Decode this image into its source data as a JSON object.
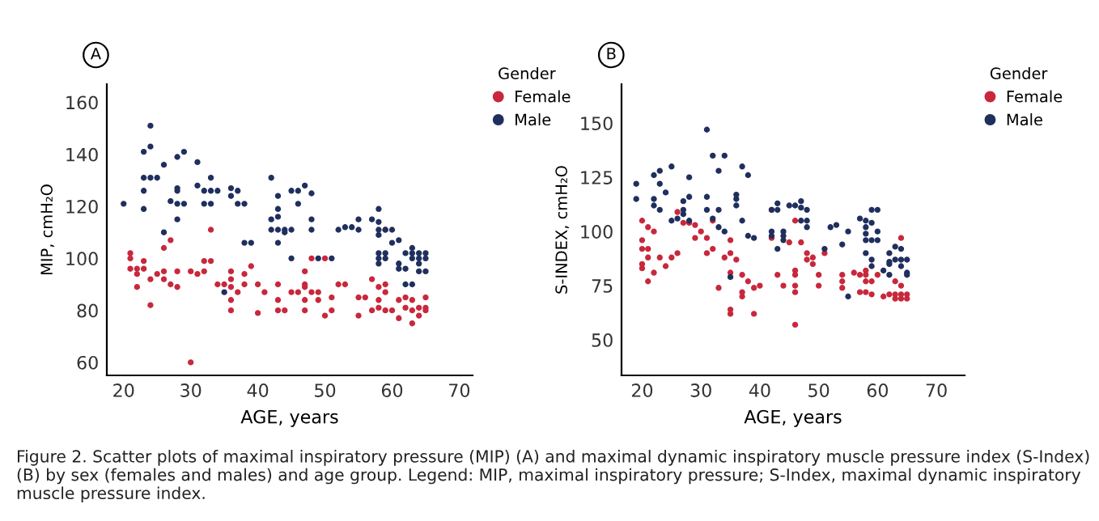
{
  "chart_data": [
    {
      "type": "scatter",
      "xlabel": "AGE, years",
      "ylabel": "MIP, cmH₂O",
      "xlim": [
        17.5,
        72
      ],
      "ylim": [
        55,
        167
      ],
      "xticks": [
        20,
        30,
        40,
        50,
        60,
        70
      ],
      "yticks": [
        60,
        80,
        100,
        120,
        140,
        160
      ],
      "grid": false,
      "legend": "top right",
      "legend_title": "Gender",
      "marker": "circle",
      "annotations": [
        "A",
        "Figure 2. Scatter plots of maximal inspiratory pressure (MIP) (A) and maximal dynamic inspiratory muscle pressure index (S-Index) (B) by sex (females and males) and age group. Legend: MIP, maximal inspiratory pressure; S-Index, maximal dynamic inspiratory muscle pressure index."
      ],
      "series": [
        {
          "name": "Female",
          "color": "#c8283c",
          "x": [
            21,
            21,
            21,
            22,
            22,
            22,
            23,
            23,
            24,
            24,
            25,
            26,
            26,
            26,
            27,
            27,
            28,
            28,
            30,
            30,
            31,
            32,
            32,
            33,
            33,
            34,
            35,
            36,
            36,
            36,
            36,
            36,
            37,
            38,
            38,
            39,
            40,
            40,
            41,
            43,
            43,
            43,
            44,
            45,
            46,
            47,
            47,
            47,
            47,
            47,
            48,
            48,
            49,
            49,
            50,
            50,
            51,
            51,
            52,
            53,
            55,
            55,
            56,
            57,
            57,
            58,
            58,
            58,
            59,
            59,
            59,
            59,
            60,
            61,
            61,
            62,
            62,
            63,
            63,
            63,
            64,
            64,
            65,
            65,
            65
          ],
          "values": [
            102,
            100,
            96,
            96,
            94,
            89,
            99,
            96,
            92,
            82,
            94,
            104,
            95,
            92,
            107,
            90,
            95,
            89,
            60,
            95,
            94,
            99,
            95,
            111,
            99,
            90,
            90,
            95,
            92,
            89,
            84,
            80,
            87,
            94,
            90,
            97,
            90,
            79,
            87,
            90,
            84,
            80,
            80,
            87,
            87,
            95,
            90,
            89,
            84,
            80,
            100,
            87,
            87,
            84,
            100,
            78,
            85,
            80,
            90,
            90,
            85,
            78,
            85,
            92,
            80,
            89,
            84,
            81,
            111,
            90,
            87,
            80,
            80,
            84,
            77,
            85,
            81,
            84,
            80,
            75,
            81,
            78,
            85,
            81,
            80
          ]
        },
        {
          "name": "Male",
          "color": "#1f2f5e",
          "x": [
            20,
            23,
            24,
            24,
            23,
            24,
            25,
            23,
            23,
            26,
            26,
            28,
            29,
            28,
            28,
            27,
            28,
            29,
            28,
            31,
            31,
            32,
            33,
            33,
            32,
            33,
            34,
            36,
            37,
            36,
            37,
            38,
            38,
            39,
            35,
            42,
            43,
            43,
            42,
            43,
            42,
            43,
            44,
            45,
            44,
            43,
            45,
            45,
            46,
            47,
            48,
            46,
            48,
            48,
            49,
            51,
            52,
            53,
            54,
            55,
            55,
            57,
            58,
            58,
            58,
            59,
            58,
            58,
            59,
            58,
            59,
            58,
            60,
            60,
            61,
            61,
            61,
            62,
            62,
            62,
            63,
            63,
            63,
            63,
            64,
            64,
            64,
            65,
            65,
            65,
            64
          ],
          "values": [
            121,
            141,
            143,
            151,
            131,
            131,
            131,
            126,
            119,
            110,
            136,
            139,
            141,
            127,
            126,
            122,
            121,
            121,
            115,
            137,
            128,
            126,
            131,
            126,
            121,
            121,
            126,
            127,
            126,
            124,
            121,
            121,
            106,
            106,
            87,
            131,
            124,
            119,
            115,
            116,
            111,
            111,
            111,
            111,
            110,
            106,
            100,
            126,
            126,
            128,
            125,
            121,
            115,
            111,
            100,
            100,
            111,
            112,
            112,
            115,
            111,
            115,
            119,
            114,
            111,
            111,
            109,
            102,
            102,
            100,
            100,
            98,
            111,
            106,
            107,
            98,
            96,
            102,
            96,
            90,
            104,
            102,
            100,
            90,
            102,
            100,
            95,
            102,
            100,
            95,
            98
          ]
        }
      ]
    },
    {
      "type": "scatter",
      "xlabel": "AGE, years",
      "ylabel": "S-INDEX, cmH₂O",
      "xlim": [
        16.5,
        74.8
      ],
      "ylim": [
        33.6,
        168
      ],
      "xticks": [
        20,
        30,
        40,
        50,
        60,
        70
      ],
      "yticks": [
        50,
        75,
        100,
        125,
        150
      ],
      "grid": false,
      "legend": "top right",
      "legend_title": "Gender",
      "marker": "circle",
      "annotations": [
        "B"
      ],
      "series": [
        {
          "name": "Female",
          "color": "#c8283c",
          "x": [
            20,
            20,
            20,
            20,
            20,
            21,
            21,
            21,
            21,
            22,
            22,
            23,
            24,
            25,
            26,
            26,
            27,
            28,
            29,
            29,
            30,
            31,
            31,
            32,
            32,
            33,
            34,
            35,
            35,
            35,
            35,
            35,
            36,
            37,
            37,
            37,
            38,
            39,
            39,
            40,
            42,
            42,
            43,
            44,
            45,
            46,
            46,
            46,
            46,
            46,
            46,
            47,
            48,
            48,
            49,
            49,
            50,
            50,
            51,
            54,
            54,
            54,
            56,
            57,
            57,
            58,
            58,
            58,
            58,
            59,
            59,
            60,
            61,
            62,
            63,
            63,
            63,
            64,
            64,
            64,
            64,
            65,
            65
          ],
          "values": [
            105,
            96,
            92,
            85,
            83,
            102,
            92,
            88,
            77,
            100,
            81,
            88,
            84,
            88,
            90,
            109,
            104,
            104,
            97,
            103,
            100,
            97,
            90,
            92,
            105,
            74,
            88,
            96,
            90,
            81,
            64,
            62,
            87,
            80,
            72,
            70,
            77,
            74,
            62,
            75,
            97,
            110,
            80,
            75,
            95,
            105,
            82,
            80,
            75,
            72,
            57,
            95,
            90,
            87,
            88,
            85,
            80,
            75,
            90,
            80,
            77,
            74,
            81,
            80,
            72,
            82,
            80,
            77,
            72,
            77,
            71,
            80,
            70,
            71,
            77,
            71,
            69,
            97,
            75,
            71,
            69,
            71,
            69
          ]
        },
        {
          "name": "Male",
          "color": "#1f2f5e",
          "x": [
            19,
            19,
            22,
            22,
            22,
            23,
            23,
            24,
            23,
            25,
            25,
            26,
            27,
            27,
            27,
            28,
            28,
            28,
            31,
            31,
            31,
            32,
            32,
            33,
            33,
            33,
            34,
            34,
            35,
            36,
            36,
            36,
            37,
            37,
            38,
            38,
            39,
            42,
            42,
            42,
            43,
            43,
            43,
            44,
            44,
            44,
            45,
            46,
            47,
            47,
            47,
            48,
            48,
            48,
            51,
            52,
            53,
            54,
            55,
            55,
            57,
            58,
            58,
            58,
            58,
            58,
            59,
            59,
            59,
            59,
            59,
            60,
            60,
            60,
            61,
            62,
            62,
            62,
            62,
            63,
            63,
            64,
            64,
            64,
            65,
            65,
            65
          ],
          "values": [
            122,
            115,
            126,
            115,
            112,
            128,
            122,
            118,
            110,
            130,
            105,
            106,
            114,
            110,
            108,
            125,
            116,
            105,
            147,
            116,
            110,
            135,
            106,
            128,
            110,
            102,
            135,
            100,
            79,
            117,
            115,
            112,
            130,
            105,
            126,
            98,
            97,
            110,
            100,
            98,
            113,
            110,
            92,
            100,
            98,
            96,
            112,
            112,
            114,
            111,
            105,
            110,
            105,
            102,
            92,
            102,
            103,
            94,
            100,
            70,
            106,
            105,
            102,
            99,
            96,
            90,
            110,
            104,
            96,
            87,
            84,
            110,
            100,
            96,
            82,
            90,
            86,
            85,
            80,
            93,
            87,
            92,
            87,
            84,
            87,
            81,
            80
          ]
        }
      ]
    }
  ]
}
